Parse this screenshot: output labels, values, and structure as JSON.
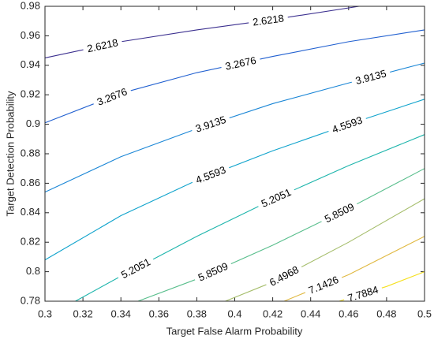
{
  "chart_data": {
    "type": "contour",
    "xlabel": "Target False Alarm Probability",
    "ylabel": "Target Detection Probability",
    "xlim": [
      0.3,
      0.5
    ],
    "ylim": [
      0.78,
      0.98
    ],
    "xticks": [
      0.3,
      0.32,
      0.34,
      0.36,
      0.38,
      0.4,
      0.42,
      0.44,
      0.46,
      0.48,
      0.5
    ],
    "yticks": [
      0.78,
      0.8,
      0.82,
      0.84,
      0.86,
      0.88,
      0.9,
      0.92,
      0.94,
      0.96,
      0.98
    ],
    "series": [
      {
        "level": 2.6218,
        "color": "#3b2f8f",
        "x": [
          0.3,
          0.34,
          0.38,
          0.42,
          0.4655
        ],
        "y": [
          0.945,
          0.956,
          0.964,
          0.971,
          0.98
        ]
      },
      {
        "level": 3.2676,
        "color": "#2160d0",
        "x": [
          0.3,
          0.34,
          0.38,
          0.42,
          0.46,
          0.5
        ],
        "y": [
          0.901,
          0.921,
          0.935,
          0.946,
          0.956,
          0.964
        ]
      },
      {
        "level": 3.9135,
        "color": "#1a86d6",
        "x": [
          0.3,
          0.34,
          0.38,
          0.42,
          0.46,
          0.5
        ],
        "y": [
          0.854,
          0.878,
          0.897,
          0.914,
          0.928,
          0.9415
        ]
      },
      {
        "level": 4.5593,
        "color": "#0fa3cc",
        "x": [
          0.3,
          0.34,
          0.38,
          0.42,
          0.46,
          0.5
        ],
        "y": [
          0.808,
          0.838,
          0.862,
          0.882,
          0.9,
          0.917
        ]
      },
      {
        "level": 5.2051,
        "color": "#1eb5ac",
        "x": [
          0.316,
          0.34,
          0.38,
          0.42,
          0.46,
          0.5
        ],
        "y": [
          0.78,
          0.797,
          0.824,
          0.849,
          0.872,
          0.893
        ]
      },
      {
        "level": 5.8509,
        "color": "#58be8c",
        "x": [
          0.349,
          0.38,
          0.42,
          0.46,
          0.5
        ],
        "y": [
          0.78,
          0.795,
          0.818,
          0.843,
          0.87
        ]
      },
      {
        "level": 6.4968,
        "color": "#a5bd6b",
        "x": [
          0.395,
          0.42,
          0.46,
          0.5
        ],
        "y": [
          0.78,
          0.793,
          0.82,
          0.8495
        ]
      },
      {
        "level": 7.1426,
        "color": "#e0b840",
        "x": [
          0.426,
          0.46,
          0.5
        ],
        "y": [
          0.78,
          0.798,
          0.824
        ]
      },
      {
        "level": 7.7884,
        "color": "#f5e020",
        "x": [
          0.455,
          0.48,
          0.5
        ],
        "y": [
          0.78,
          0.79,
          0.8
        ]
      }
    ]
  }
}
